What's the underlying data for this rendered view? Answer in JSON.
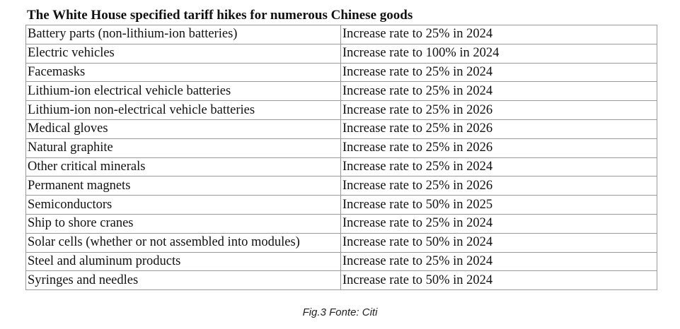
{
  "title": "The White House specified tariff hikes for numerous Chinese goods",
  "table": {
    "rows": [
      {
        "good": "Battery parts (non-lithium-ion batteries)",
        "action": "Increase rate to 25% in 2024"
      },
      {
        "good": "Electric vehicles",
        "action": "Increase rate to 100% in 2024"
      },
      {
        "good": "Facemasks",
        "action": "Increase rate to 25% in 2024"
      },
      {
        "good": "Lithium-ion electrical vehicle batteries",
        "action": "Increase rate to 25% in 2024"
      },
      {
        "good": "Lithium-ion non-electrical vehicle batteries",
        "action": "Increase rate to 25% in 2026"
      },
      {
        "good": "Medical gloves",
        "action": "Increase rate to 25% in 2026"
      },
      {
        "good": "Natural graphite",
        "action": "Increase rate to 25% in 2026"
      },
      {
        "good": "Other critical minerals",
        "action": "Increase rate to 25% in 2024"
      },
      {
        "good": "Permanent magnets",
        "action": "Increase rate to 25% in 2026"
      },
      {
        "good": "Semiconductors",
        "action": "Increase rate to 50% in 2025"
      },
      {
        "good": "Ship to shore cranes",
        "action": "Increase rate to 25% in 2024"
      },
      {
        "good": "Solar cells (whether or not assembled into modules)",
        "action": "Increase rate to 50% in 2024"
      },
      {
        "good": "Steel and aluminum products",
        "action": "Increase rate to 25% in 2024"
      },
      {
        "good": "Syringes and needles",
        "action": "Increase rate to 50% in 2024"
      }
    ]
  },
  "caption": "Fig.3 Fonte: Citi"
}
